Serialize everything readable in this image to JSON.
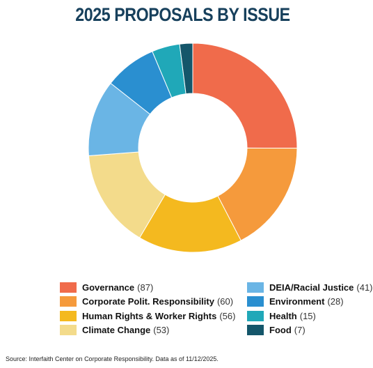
{
  "chart_data": {
    "type": "pie",
    "title": "2025 PROPOSALS BY ISSUE",
    "categories": [
      "Governance",
      "Corporate Polit. Responsibility",
      "Human Rights & Worker Rights",
      "Climate Change",
      "DEIA/Racial Justice",
      "Environment",
      "Health",
      "Food"
    ],
    "values": [
      87,
      60,
      56,
      53,
      41,
      28,
      15,
      7
    ],
    "count_labels": [
      "(87)",
      "(60)",
      "(56)",
      "(53)",
      "(41)",
      "(28)",
      "(15)",
      "(7)"
    ],
    "colors": [
      "#f06b4b",
      "#f59a3c",
      "#f4b91f",
      "#f3db8b",
      "#6ab5e5",
      "#2a8fd0",
      "#20a8b8",
      "#14566a"
    ],
    "donut": true,
    "legend_position": "bottom"
  },
  "footer": {
    "source": "Source: Interfaith Center on Corporate Responsibility. Data as of 11/12/2025."
  }
}
